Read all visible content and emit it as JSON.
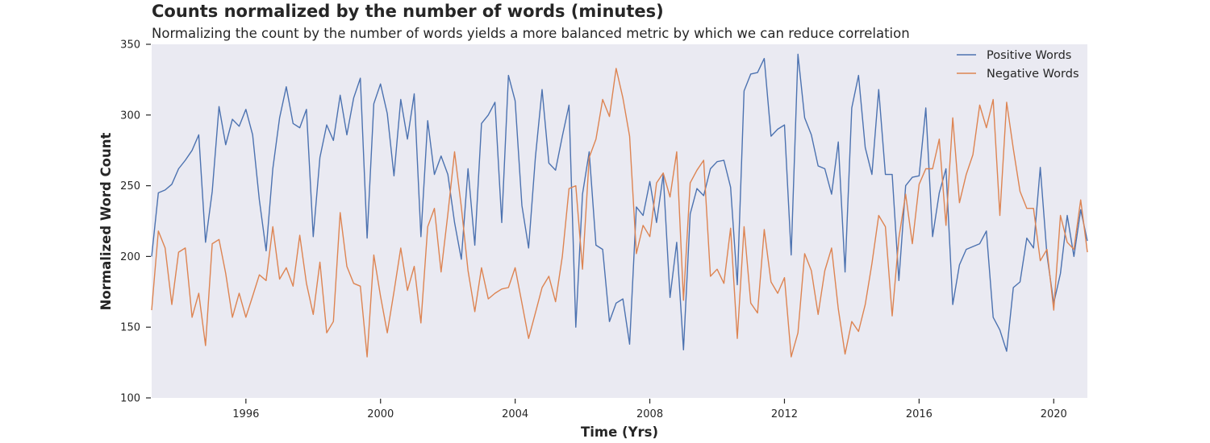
{
  "chart_data": {
    "type": "line",
    "title": "Counts normalized by the number of words (minutes)",
    "subtitle": "Normalizing the count by the number of words yields a more balanced metric by which we can reduce correlation",
    "xlabel": "Time (Yrs)",
    "ylabel": "Normalized Word Count",
    "xlim": [
      1993.2,
      2021.0
    ],
    "ylim": [
      100,
      350
    ],
    "xticks": [
      1996,
      2000,
      2004,
      2008,
      2012,
      2016,
      2020
    ],
    "yticks": [
      100,
      150,
      200,
      250,
      300,
      350
    ],
    "grid": false,
    "legend": "top-right",
    "background": "#eaeaf2",
    "series": [
      {
        "name": "Positive Words",
        "color": "#4c72b0",
        "points": [
          [
            1993.2,
            200
          ],
          [
            1993.4,
            245
          ],
          [
            1993.6,
            247
          ],
          [
            1993.8,
            251
          ],
          [
            1994.0,
            262
          ],
          [
            1994.2,
            268
          ],
          [
            1994.4,
            275
          ],
          [
            1994.6,
            286
          ],
          [
            1994.8,
            210
          ],
          [
            1995.0,
            246
          ],
          [
            1995.2,
            306
          ],
          [
            1995.4,
            279
          ],
          [
            1995.6,
            297
          ],
          [
            1995.8,
            292
          ],
          [
            1996.0,
            304
          ],
          [
            1996.2,
            286
          ],
          [
            1996.4,
            240
          ],
          [
            1996.6,
            204
          ],
          [
            1996.8,
            262
          ],
          [
            1997.0,
            298
          ],
          [
            1997.2,
            320
          ],
          [
            1997.4,
            294
          ],
          [
            1997.6,
            291
          ],
          [
            1997.8,
            304
          ],
          [
            1998.0,
            214
          ],
          [
            1998.2,
            270
          ],
          [
            1998.4,
            293
          ],
          [
            1998.6,
            282
          ],
          [
            1998.8,
            314
          ],
          [
            1999.0,
            286
          ],
          [
            1999.2,
            312
          ],
          [
            1999.4,
            326
          ],
          [
            1999.6,
            213
          ],
          [
            1999.8,
            308
          ],
          [
            2000.0,
            322
          ],
          [
            2000.2,
            301
          ],
          [
            2000.4,
            257
          ],
          [
            2000.6,
            311
          ],
          [
            2000.8,
            283
          ],
          [
            2001.0,
            315
          ],
          [
            2001.2,
            214
          ],
          [
            2001.4,
            296
          ],
          [
            2001.6,
            258
          ],
          [
            2001.8,
            271
          ],
          [
            2002.0,
            258
          ],
          [
            2002.2,
            224
          ],
          [
            2002.4,
            198
          ],
          [
            2002.6,
            262
          ],
          [
            2002.8,
            208
          ],
          [
            2003.0,
            294
          ],
          [
            2003.2,
            300
          ],
          [
            2003.4,
            309
          ],
          [
            2003.6,
            224
          ],
          [
            2003.8,
            328
          ],
          [
            2004.0,
            310
          ],
          [
            2004.2,
            236
          ],
          [
            2004.4,
            206
          ],
          [
            2004.6,
            270
          ],
          [
            2004.8,
            318
          ],
          [
            2005.0,
            266
          ],
          [
            2005.2,
            261
          ],
          [
            2005.4,
            285
          ],
          [
            2005.6,
            307
          ],
          [
            2005.8,
            150
          ],
          [
            2006.0,
            244
          ],
          [
            2006.2,
            274
          ],
          [
            2006.4,
            208
          ],
          [
            2006.6,
            205
          ],
          [
            2006.8,
            154
          ],
          [
            2007.0,
            167
          ],
          [
            2007.2,
            170
          ],
          [
            2007.4,
            138
          ],
          [
            2007.6,
            235
          ],
          [
            2007.8,
            229
          ],
          [
            2008.0,
            253
          ],
          [
            2008.2,
            224
          ],
          [
            2008.4,
            258
          ],
          [
            2008.6,
            171
          ],
          [
            2008.8,
            210
          ],
          [
            2009.0,
            134
          ],
          [
            2009.2,
            230
          ],
          [
            2009.4,
            248
          ],
          [
            2009.6,
            243
          ],
          [
            2009.8,
            262
          ],
          [
            2010.0,
            267
          ],
          [
            2010.2,
            268
          ],
          [
            2010.4,
            249
          ],
          [
            2010.6,
            180
          ],
          [
            2010.8,
            317
          ],
          [
            2011.0,
            329
          ],
          [
            2011.2,
            330
          ],
          [
            2011.4,
            340
          ],
          [
            2011.6,
            285
          ],
          [
            2011.8,
            290
          ],
          [
            2012.0,
            293
          ],
          [
            2012.2,
            201
          ],
          [
            2012.4,
            343
          ],
          [
            2012.6,
            298
          ],
          [
            2012.8,
            286
          ],
          [
            2013.0,
            264
          ],
          [
            2013.2,
            262
          ],
          [
            2013.4,
            244
          ],
          [
            2013.6,
            281
          ],
          [
            2013.8,
            189
          ],
          [
            2014.0,
            305
          ],
          [
            2014.2,
            328
          ],
          [
            2014.4,
            277
          ],
          [
            2014.6,
            258
          ],
          [
            2014.8,
            318
          ],
          [
            2015.0,
            258
          ],
          [
            2015.2,
            258
          ],
          [
            2015.4,
            183
          ],
          [
            2015.6,
            250
          ],
          [
            2015.8,
            256
          ],
          [
            2016.0,
            257
          ],
          [
            2016.2,
            305
          ],
          [
            2016.4,
            214
          ],
          [
            2016.6,
            245
          ],
          [
            2016.8,
            262
          ],
          [
            2017.0,
            166
          ],
          [
            2017.2,
            194
          ],
          [
            2017.4,
            205
          ],
          [
            2017.6,
            207
          ],
          [
            2017.8,
            209
          ],
          [
            2018.0,
            218
          ],
          [
            2018.2,
            157
          ],
          [
            2018.4,
            148
          ],
          [
            2018.6,
            133
          ],
          [
            2018.8,
            178
          ],
          [
            2019.0,
            182
          ],
          [
            2019.2,
            213
          ],
          [
            2019.4,
            206
          ],
          [
            2019.6,
            263
          ],
          [
            2019.8,
            201
          ],
          [
            2020.0,
            167
          ],
          [
            2020.2,
            188
          ],
          [
            2020.4,
            229
          ],
          [
            2020.6,
            200
          ],
          [
            2020.8,
            233
          ],
          [
            2021.0,
            211
          ]
        ]
      },
      {
        "name": "Negative Words",
        "color": "#dd8452",
        "points": [
          [
            1993.2,
            162
          ],
          [
            1993.4,
            218
          ],
          [
            1993.6,
            206
          ],
          [
            1993.8,
            166
          ],
          [
            1994.0,
            203
          ],
          [
            1994.2,
            206
          ],
          [
            1994.4,
            157
          ],
          [
            1994.6,
            174
          ],
          [
            1994.8,
            137
          ],
          [
            1995.0,
            209
          ],
          [
            1995.2,
            212
          ],
          [
            1995.4,
            188
          ],
          [
            1995.6,
            157
          ],
          [
            1995.8,
            174
          ],
          [
            1996.0,
            157
          ],
          [
            1996.2,
            172
          ],
          [
            1996.4,
            187
          ],
          [
            1996.6,
            183
          ],
          [
            1996.8,
            221
          ],
          [
            1997.0,
            184
          ],
          [
            1997.2,
            192
          ],
          [
            1997.4,
            179
          ],
          [
            1997.6,
            215
          ],
          [
            1997.8,
            181
          ],
          [
            1998.0,
            159
          ],
          [
            1998.2,
            196
          ],
          [
            1998.4,
            146
          ],
          [
            1998.6,
            154
          ],
          [
            1998.8,
            231
          ],
          [
            1999.0,
            193
          ],
          [
            1999.2,
            181
          ],
          [
            1999.4,
            179
          ],
          [
            1999.6,
            129
          ],
          [
            1999.8,
            201
          ],
          [
            2000.0,
            172
          ],
          [
            2000.2,
            146
          ],
          [
            2000.4,
            175
          ],
          [
            2000.6,
            206
          ],
          [
            2000.8,
            176
          ],
          [
            2001.0,
            193
          ],
          [
            2001.2,
            153
          ],
          [
            2001.4,
            221
          ],
          [
            2001.6,
            234
          ],
          [
            2001.8,
            189
          ],
          [
            2002.0,
            230
          ],
          [
            2002.2,
            274
          ],
          [
            2002.4,
            235
          ],
          [
            2002.6,
            190
          ],
          [
            2002.8,
            161
          ],
          [
            2003.0,
            192
          ],
          [
            2003.2,
            170
          ],
          [
            2003.4,
            174
          ],
          [
            2003.6,
            177
          ],
          [
            2003.8,
            178
          ],
          [
            2004.0,
            192
          ],
          [
            2004.2,
            167
          ],
          [
            2004.4,
            142
          ],
          [
            2004.6,
            160
          ],
          [
            2004.8,
            178
          ],
          [
            2005.0,
            186
          ],
          [
            2005.2,
            168
          ],
          [
            2005.4,
            200
          ],
          [
            2005.6,
            248
          ],
          [
            2005.8,
            250
          ],
          [
            2006.0,
            191
          ],
          [
            2006.2,
            270
          ],
          [
            2006.4,
            283
          ],
          [
            2006.6,
            311
          ],
          [
            2006.8,
            299
          ],
          [
            2007.0,
            333
          ],
          [
            2007.2,
            312
          ],
          [
            2007.4,
            285
          ],
          [
            2007.6,
            202
          ],
          [
            2007.8,
            222
          ],
          [
            2008.0,
            214
          ],
          [
            2008.2,
            252
          ],
          [
            2008.4,
            259
          ],
          [
            2008.6,
            242
          ],
          [
            2008.8,
            274
          ],
          [
            2009.0,
            169
          ],
          [
            2009.2,
            252
          ],
          [
            2009.4,
            261
          ],
          [
            2009.6,
            268
          ],
          [
            2009.8,
            186
          ],
          [
            2010.0,
            191
          ],
          [
            2010.2,
            181
          ],
          [
            2010.4,
            220
          ],
          [
            2010.6,
            142
          ],
          [
            2010.8,
            221
          ],
          [
            2011.0,
            167
          ],
          [
            2011.2,
            160
          ],
          [
            2011.4,
            219
          ],
          [
            2011.6,
            182
          ],
          [
            2011.8,
            174
          ],
          [
            2012.0,
            185
          ],
          [
            2012.2,
            129
          ],
          [
            2012.4,
            146
          ],
          [
            2012.6,
            202
          ],
          [
            2012.8,
            190
          ],
          [
            2013.0,
            159
          ],
          [
            2013.2,
            190
          ],
          [
            2013.4,
            206
          ],
          [
            2013.6,
            163
          ],
          [
            2013.8,
            131
          ],
          [
            2014.0,
            154
          ],
          [
            2014.2,
            147
          ],
          [
            2014.4,
            166
          ],
          [
            2014.6,
            195
          ],
          [
            2014.8,
            229
          ],
          [
            2015.0,
            221
          ],
          [
            2015.2,
            158
          ],
          [
            2015.4,
            213
          ],
          [
            2015.6,
            244
          ],
          [
            2015.8,
            209
          ],
          [
            2016.0,
            251
          ],
          [
            2016.2,
            262
          ],
          [
            2016.4,
            262
          ],
          [
            2016.6,
            283
          ],
          [
            2016.8,
            222
          ],
          [
            2017.0,
            298
          ],
          [
            2017.2,
            238
          ],
          [
            2017.4,
            258
          ],
          [
            2017.6,
            272
          ],
          [
            2017.8,
            307
          ],
          [
            2018.0,
            291
          ],
          [
            2018.2,
            311
          ],
          [
            2018.4,
            229
          ],
          [
            2018.6,
            309
          ],
          [
            2018.8,
            276
          ],
          [
            2019.0,
            246
          ],
          [
            2019.2,
            234
          ],
          [
            2019.4,
            234
          ],
          [
            2019.6,
            197
          ],
          [
            2019.8,
            205
          ],
          [
            2020.0,
            162
          ],
          [
            2020.2,
            229
          ],
          [
            2020.4,
            210
          ],
          [
            2020.6,
            205
          ],
          [
            2020.8,
            240
          ],
          [
            2021.0,
            203
          ]
        ]
      }
    ]
  }
}
